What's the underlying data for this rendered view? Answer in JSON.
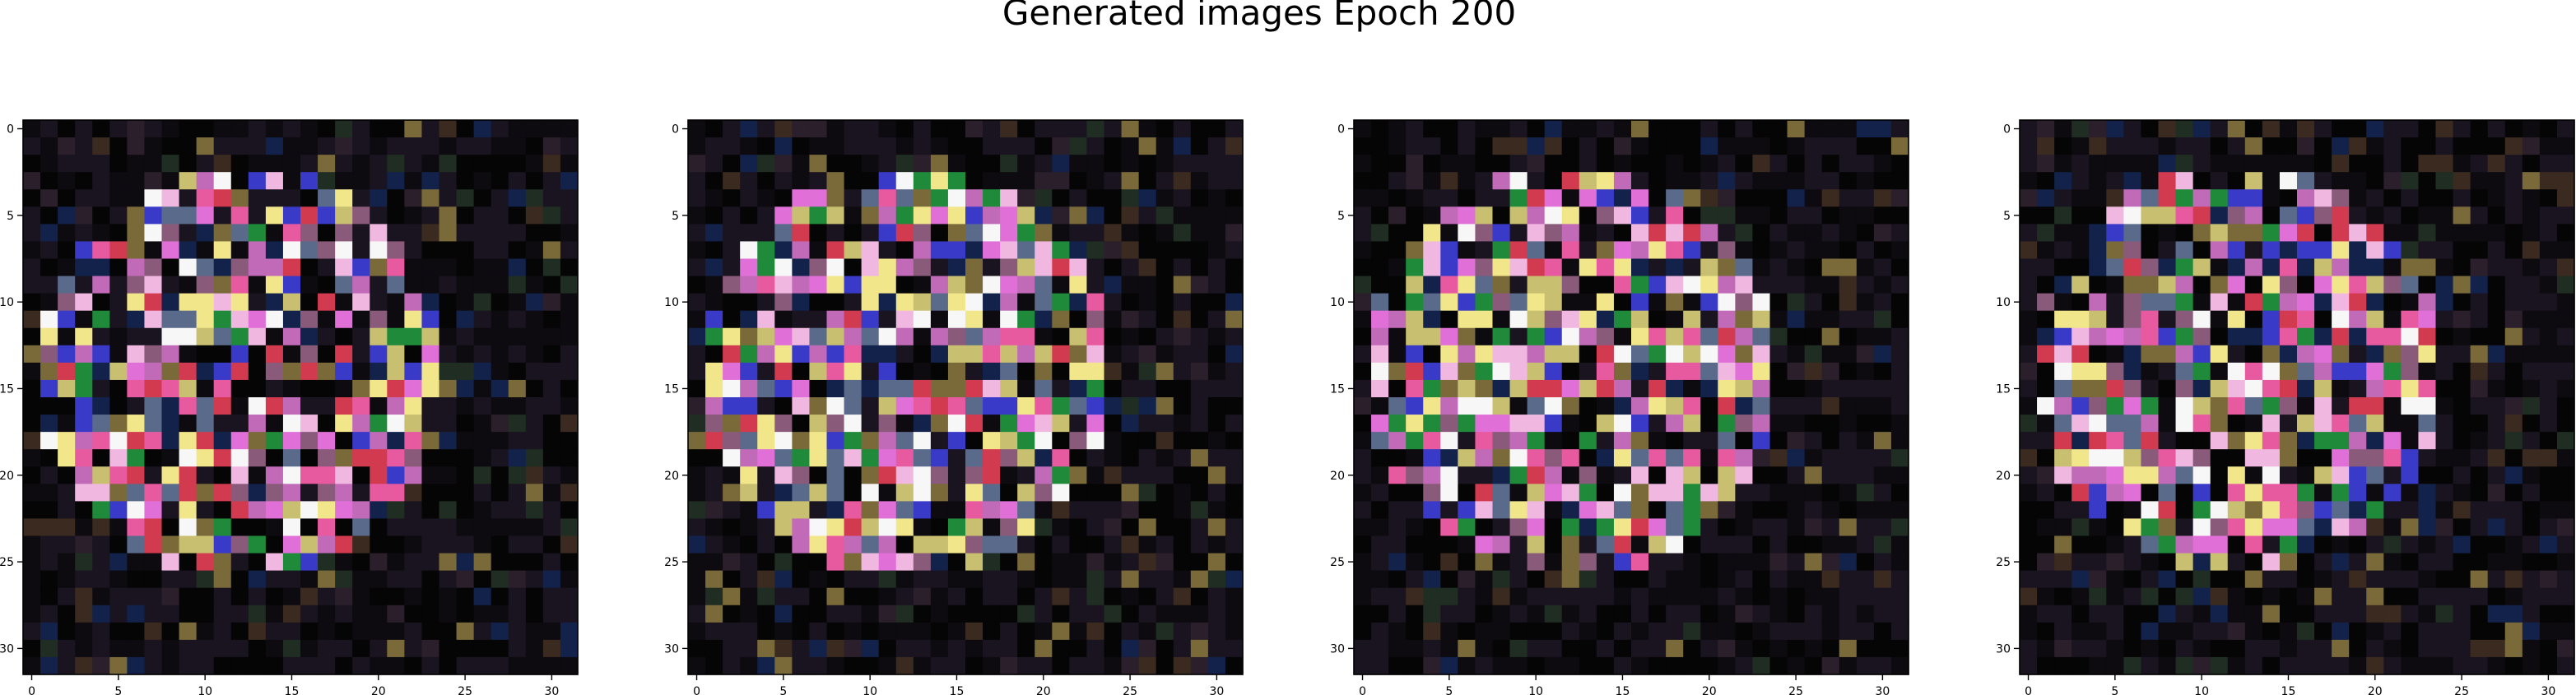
{
  "figure": {
    "title": "Generated images Epoch 200"
  },
  "chart_data": [
    {
      "type": "heatmap",
      "panel": 1,
      "rows": 32,
      "cols": 32,
      "xticks": [
        0,
        5,
        10,
        15,
        20,
        25,
        30
      ],
      "yticks": [
        0,
        5,
        10,
        15,
        20,
        25,
        30
      ],
      "xlim": [
        -0.5,
        31.5
      ],
      "ylim": [
        31.5,
        -0.5
      ],
      "palette": [
        "#050505",
        "#0d0b10",
        "#1a1420",
        "#2a1f2a",
        "#3a2a1f",
        "#1f2d22",
        "#12224a",
        "#7a6a3a",
        "#8a5a7a",
        "#5a6a8a",
        "#e070d8",
        "#f0b8e0",
        "#f2e68a",
        "#d23a50",
        "#3a3ac8",
        "#1e8a3a",
        "#c8c070",
        "#c06ab8",
        "#f7f7f7",
        "#e85aa0"
      ],
      "seed": 200
    },
    {
      "type": "heatmap",
      "panel": 2,
      "rows": 32,
      "cols": 32,
      "xticks": [
        0,
        5,
        10,
        15,
        20,
        25,
        30
      ],
      "yticks": [
        0,
        5,
        10,
        15,
        20,
        25,
        30
      ],
      "xlim": [
        -0.5,
        31.5
      ],
      "ylim": [
        31.5,
        -0.5
      ],
      "palette": [
        "#050505",
        "#0d0b10",
        "#1a1420",
        "#2a1f2a",
        "#3a2a1f",
        "#1f2d22",
        "#12224a",
        "#7a6a3a",
        "#8a5a7a",
        "#5a6a8a",
        "#e070d8",
        "#f0b8e0",
        "#f2e68a",
        "#d23a50",
        "#3a3ac8",
        "#1e8a3a",
        "#c8c070",
        "#c06ab8",
        "#f7f7f7",
        "#e85aa0"
      ],
      "seed": 201
    },
    {
      "type": "heatmap",
      "panel": 3,
      "rows": 32,
      "cols": 32,
      "xticks": [
        0,
        5,
        10,
        15,
        20,
        25,
        30
      ],
      "yticks": [
        0,
        5,
        10,
        15,
        20,
        25,
        30
      ],
      "xlim": [
        -0.5,
        31.5
      ],
      "ylim": [
        31.5,
        -0.5
      ],
      "palette": [
        "#050505",
        "#0d0b10",
        "#1a1420",
        "#2a1f2a",
        "#3a2a1f",
        "#1f2d22",
        "#12224a",
        "#7a6a3a",
        "#8a5a7a",
        "#5a6a8a",
        "#e070d8",
        "#f0b8e0",
        "#f2e68a",
        "#d23a50",
        "#3a3ac8",
        "#1e8a3a",
        "#c8c070",
        "#c06ab8",
        "#f7f7f7",
        "#e85aa0"
      ],
      "seed": 202
    },
    {
      "type": "heatmap",
      "panel": 4,
      "rows": 32,
      "cols": 32,
      "xticks": [
        0,
        5,
        10,
        15,
        20,
        25,
        30
      ],
      "yticks": [
        0,
        5,
        10,
        15,
        20,
        25,
        30
      ],
      "xlim": [
        -0.5,
        31.5
      ],
      "ylim": [
        31.5,
        -0.5
      ],
      "palette": [
        "#050505",
        "#0d0b10",
        "#1a1420",
        "#2a1f2a",
        "#3a2a1f",
        "#1f2d22",
        "#12224a",
        "#7a6a3a",
        "#8a5a7a",
        "#5a6a8a",
        "#e070d8",
        "#f0b8e0",
        "#f2e68a",
        "#d23a50",
        "#3a3ac8",
        "#1e8a3a",
        "#c8c070",
        "#c06ab8",
        "#f7f7f7",
        "#e85aa0"
      ],
      "seed": 203
    }
  ]
}
